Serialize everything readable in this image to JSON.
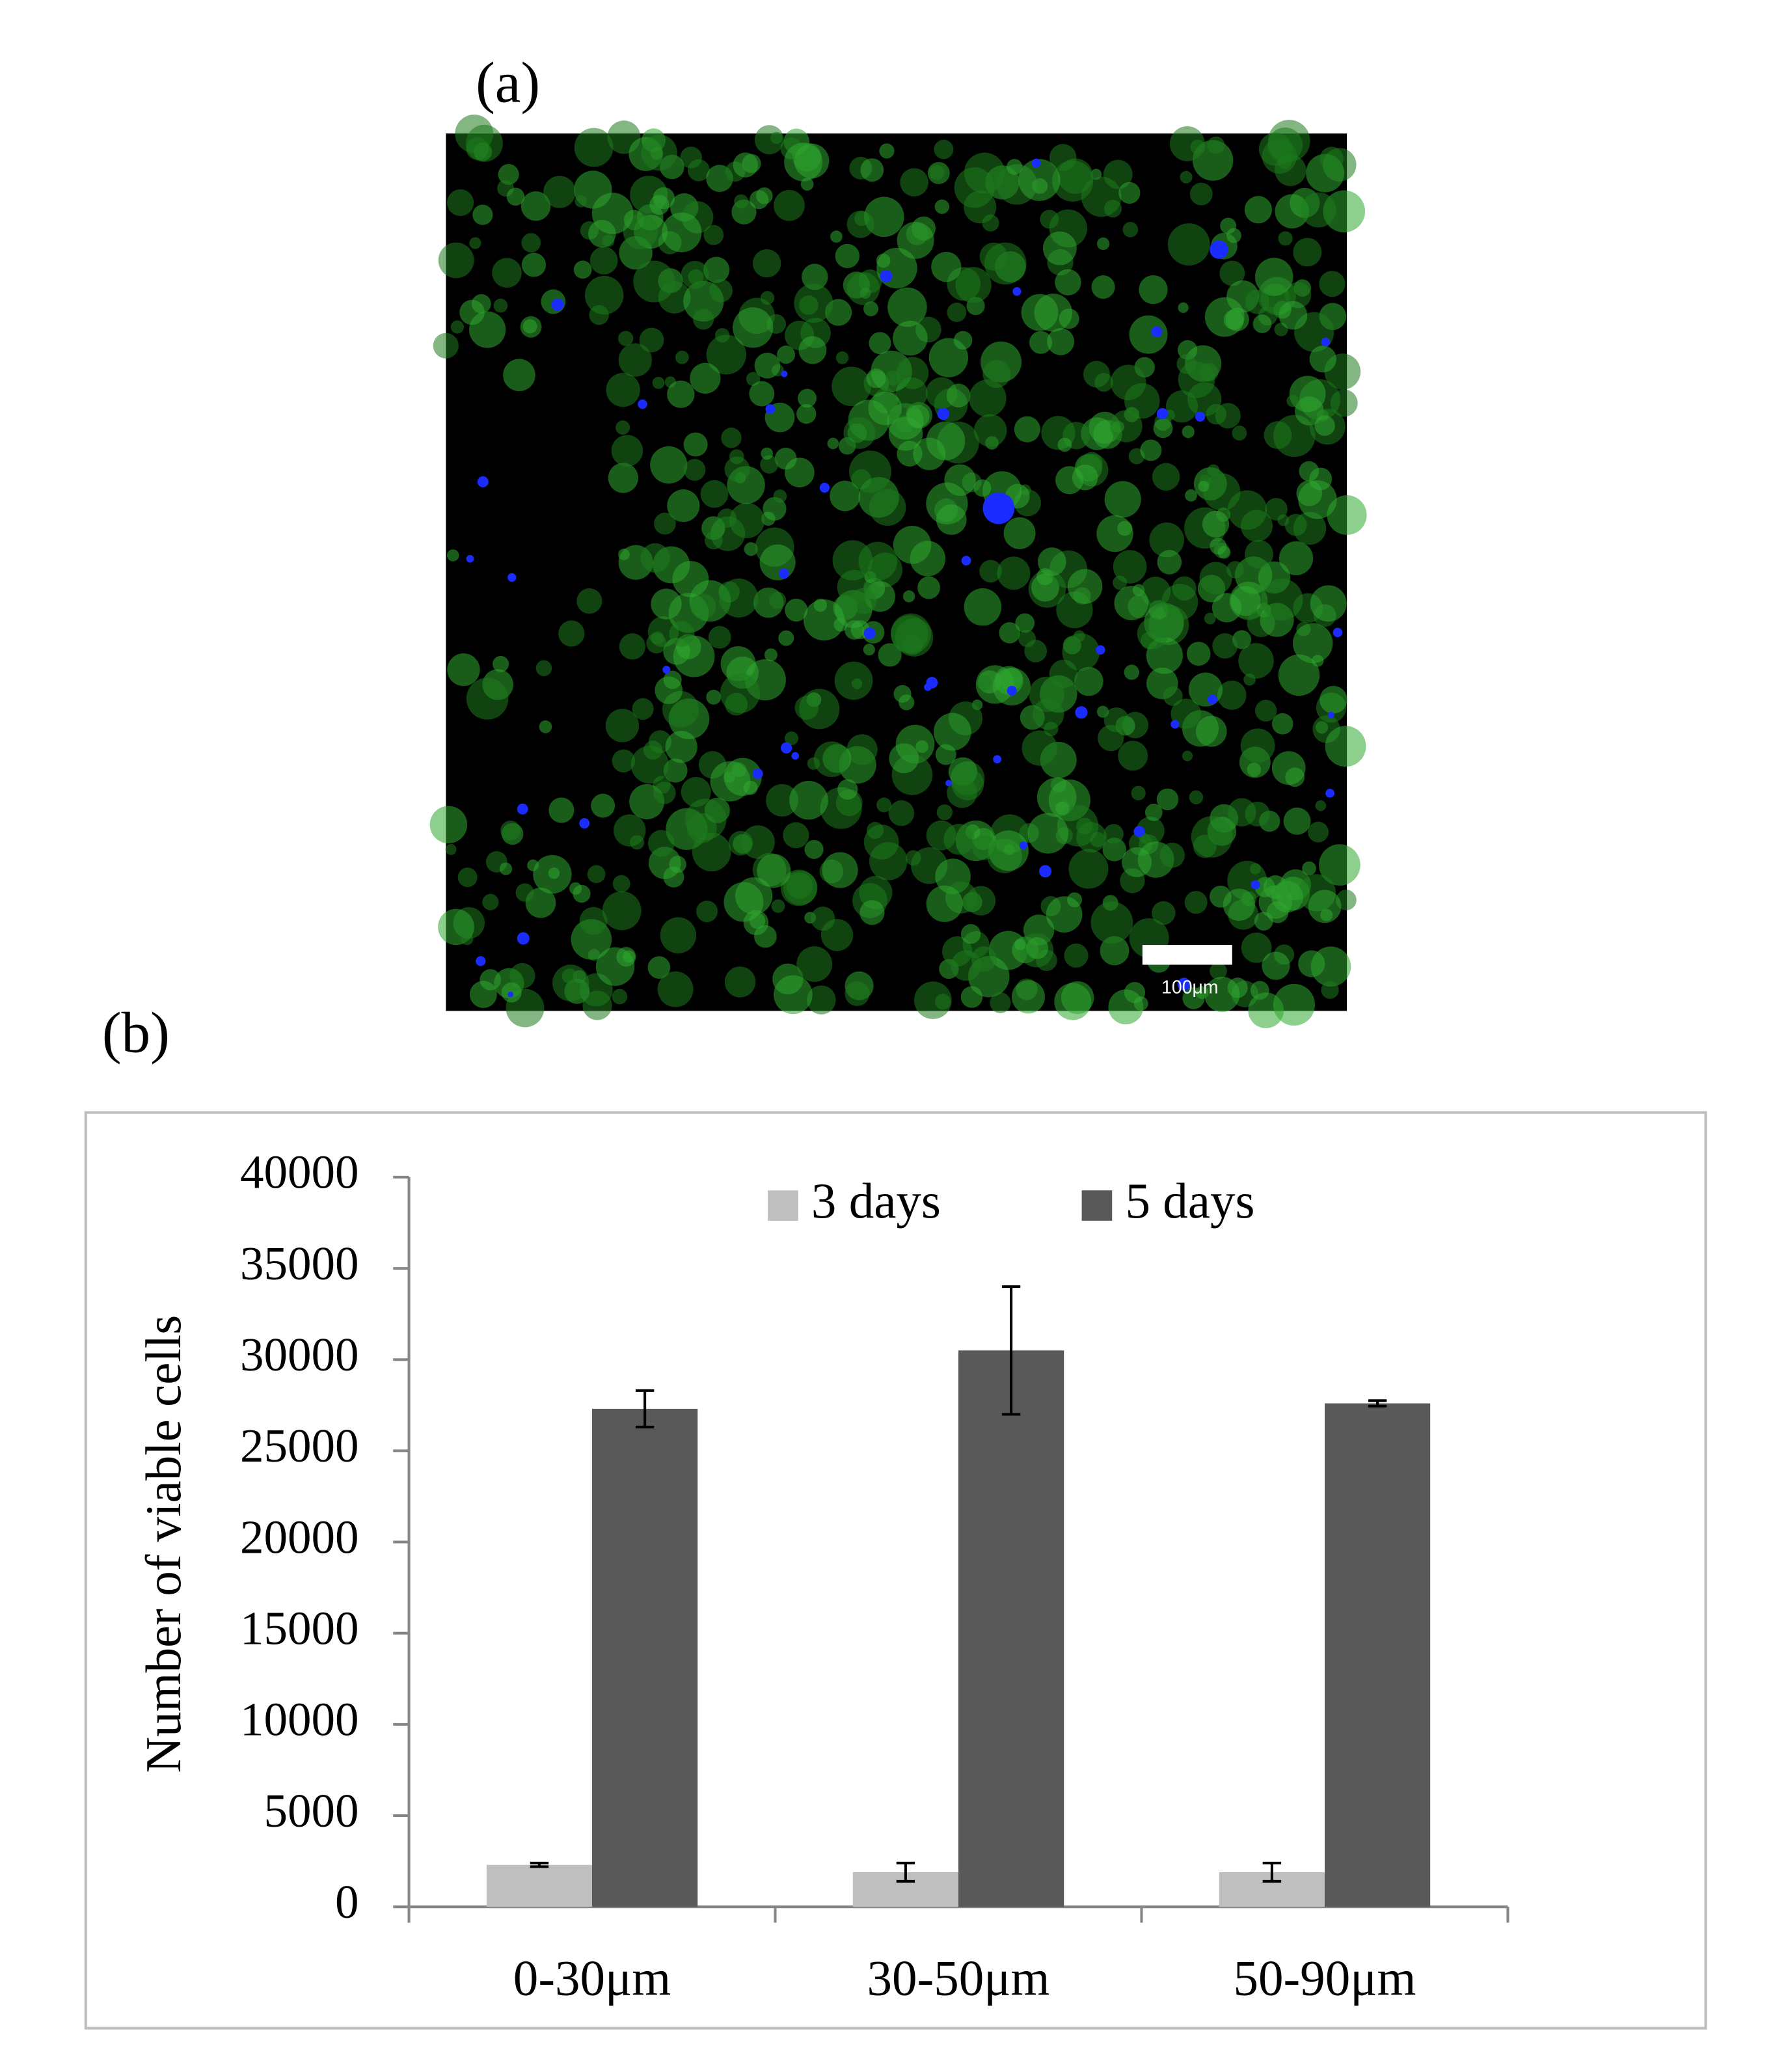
{
  "panel_a_label": "(a)",
  "panel_b_label": "(b)",
  "scale_bar_label": "100μm",
  "chart_data": {
    "type": "bar",
    "y_label": "Number of viable cells",
    "categories": [
      "0-30μm",
      "30-50μm",
      "50-90μm"
    ],
    "series": [
      {
        "name": "3 days",
        "color": "#bfbfbf",
        "values": [
          2300,
          1900,
          1900
        ],
        "errors": [
          100,
          500,
          500
        ]
      },
      {
        "name": "5 days",
        "color": "#595959",
        "values": [
          27300,
          30500,
          27600
        ],
        "errors": [
          1000,
          3500,
          150
        ]
      }
    ],
    "ylim": [
      0,
      40000
    ],
    "yticks": [
      0,
      5000,
      10000,
      15000,
      20000,
      25000,
      30000,
      35000,
      40000
    ],
    "grid": false,
    "legend": "top"
  }
}
